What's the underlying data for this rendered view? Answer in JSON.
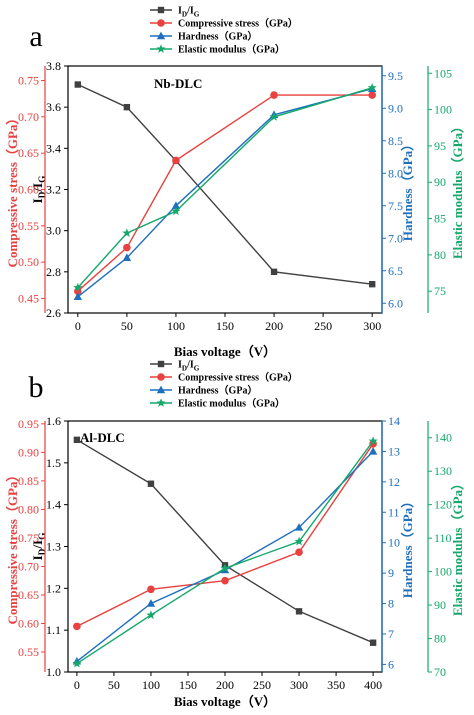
{
  "colors": {
    "id_ig": "#404040",
    "compressive": "#e8413f",
    "hardness": "#1f6fbf",
    "elastic": "#14a86b",
    "axis": "#000000",
    "hardness_axis": "#1f6fbf",
    "elastic_axis": "#14a86b",
    "compressive_axis": "#e8413f"
  },
  "chart_data": [
    {
      "panel_letter": "a",
      "type": "line",
      "inset_label": "Nb-DLC",
      "xlabel": "Bias voltage（V）",
      "xlim": [
        -10,
        310
      ],
      "xticks": [
        "0",
        "50",
        "100",
        "150",
        "200",
        "250",
        "300"
      ],
      "xtick_values": [
        0,
        50,
        100,
        150,
        200,
        250,
        300
      ],
      "legend": {
        "placement": "top-center",
        "entries": [
          "I₀/I₁",
          "Compressive stress（GPa）",
          "Hardness（GPa）",
          "Elastic modulus（GPa）"
        ]
      },
      "axes": {
        "id_ig": {
          "label": "I₀/I₁",
          "lim": [
            2.6,
            3.8
          ],
          "ticks": [
            "2.6",
            "2.8",
            "3.0",
            "3.2",
            "3.4",
            "3.6",
            "3.8"
          ],
          "tick_values": [
            2.6,
            2.8,
            3.0,
            3.2,
            3.4,
            3.6,
            3.8
          ]
        },
        "compressive": {
          "label": "Compressive stress（GPa）",
          "lim": [
            0.43,
            0.77
          ],
          "ticks": [
            "0.45",
            "0.50",
            "0.55",
            "0.60",
            "0.65",
            "0.70",
            "0.75"
          ],
          "tick_values": [
            0.45,
            0.5,
            0.55,
            0.6,
            0.65,
            0.7,
            0.75
          ]
        },
        "hardness": {
          "label": "Hardness（GPa）",
          "lim": [
            5.85,
            9.65
          ],
          "ticks": [
            "6.0",
            "6.5",
            "7.0",
            "7.5",
            "8.0",
            "8.5",
            "9.0",
            "9.5"
          ],
          "tick_values": [
            6.0,
            6.5,
            7.0,
            7.5,
            8.0,
            8.5,
            9.0,
            9.5
          ]
        },
        "elastic": {
          "label": "Elastic modulus（GPa）",
          "lim": [
            72,
            106
          ],
          "ticks": [
            "75",
            "80",
            "85",
            "90",
            "95",
            "100",
            "105"
          ],
          "tick_values": [
            75,
            80,
            85,
            90,
            95,
            100,
            105
          ]
        }
      },
      "series": [
        {
          "name": "I₀/I₁",
          "axis": "id_ig",
          "marker": "square",
          "x": [
            0,
            50,
            100,
            200,
            300
          ],
          "values": [
            3.71,
            3.6,
            3.34,
            2.8,
            2.74
          ]
        },
        {
          "name": "Compressive stress（GPa）",
          "axis": "compressive",
          "marker": "circle",
          "x": [
            0,
            50,
            100,
            200,
            300
          ],
          "values": [
            0.46,
            0.52,
            0.64,
            0.73,
            0.73
          ]
        },
        {
          "name": "Hardness（GPa）",
          "axis": "hardness",
          "marker": "triangle",
          "x": [
            0,
            50,
            100,
            200,
            300
          ],
          "values": [
            6.1,
            6.7,
            7.5,
            8.9,
            9.3
          ]
        },
        {
          "name": "Elastic modulus（GPa）",
          "axis": "elastic",
          "marker": "star",
          "x": [
            0,
            50,
            100,
            200,
            300
          ],
          "values": [
            75.5,
            83.0,
            86.0,
            99.0,
            103.0
          ]
        }
      ]
    },
    {
      "panel_letter": "b",
      "type": "line",
      "inset_label": "Al-DLC",
      "xlabel": "Bias voltage（V）",
      "xlim": [
        -12,
        412
      ],
      "xticks": [
        "0",
        "50",
        "100",
        "150",
        "200",
        "250",
        "300",
        "350",
        "400"
      ],
      "xtick_values": [
        0,
        50,
        100,
        150,
        200,
        250,
        300,
        350,
        400
      ],
      "legend": {
        "placement": "top-left",
        "entries": [
          "I₀/I₁",
          "Compressive stress（GPa）",
          "Hardness（GPa）",
          "Elastic modulus（GPa）"
        ]
      },
      "axes": {
        "id_ig": {
          "label": "I₀/I₁",
          "lim": [
            1.0,
            1.6
          ],
          "ticks": [
            "1.0",
            "1.1",
            "1.2",
            "1.3",
            "1.4",
            "1.5",
            "1.6"
          ],
          "tick_values": [
            1.0,
            1.1,
            1.2,
            1.3,
            1.4,
            1.5,
            1.6
          ]
        },
        "compressive": {
          "label": "Compressive stress（GPa）",
          "lim": [
            0.515,
            0.955
          ],
          "ticks": [
            "0.55",
            "0.60",
            "0.65",
            "0.70",
            "0.75",
            "0.80",
            "0.85",
            "0.90",
            "0.95"
          ],
          "tick_values": [
            0.55,
            0.6,
            0.65,
            0.7,
            0.75,
            0.8,
            0.85,
            0.9,
            0.95
          ]
        },
        "hardness": {
          "label": "Hardness（GPa）",
          "lim": [
            5.75,
            14.0
          ],
          "ticks": [
            "6",
            "7",
            "8",
            "9",
            "10",
            "11",
            "12",
            "13",
            "14"
          ],
          "tick_values": [
            6,
            7,
            8,
            9,
            10,
            11,
            12,
            13,
            14
          ]
        },
        "elastic": {
          "label": "Elastic modulus（GPa）",
          "lim": [
            70,
            145
          ],
          "ticks": [
            "70",
            "80",
            "90",
            "100",
            "110",
            "120",
            "130",
            "140"
          ],
          "tick_values": [
            70,
            80,
            90,
            100,
            110,
            120,
            130,
            140
          ]
        }
      },
      "series": [
        {
          "name": "I₀/I₁",
          "axis": "id_ig",
          "marker": "square",
          "x": [
            0,
            100,
            200,
            300,
            400
          ],
          "values": [
            1.555,
            1.45,
            1.255,
            1.145,
            1.07
          ]
        },
        {
          "name": "Compressive stress（GPa）",
          "axis": "compressive",
          "marker": "circle",
          "x": [
            0,
            100,
            200,
            300,
            400
          ],
          "values": [
            0.595,
            0.66,
            0.675,
            0.725,
            0.915
          ]
        },
        {
          "name": "Hardness（GPa）",
          "axis": "hardness",
          "marker": "triangle",
          "x": [
            0,
            100,
            200,
            300,
            400
          ],
          "values": [
            6.1,
            8.0,
            9.1,
            10.5,
            13.0
          ]
        },
        {
          "name": "Elastic modulus（GPa）",
          "axis": "elastic",
          "marker": "star",
          "x": [
            0,
            100,
            200,
            300,
            400
          ],
          "values": [
            72.5,
            87.0,
            101.0,
            109.0,
            139.0
          ]
        }
      ]
    }
  ]
}
